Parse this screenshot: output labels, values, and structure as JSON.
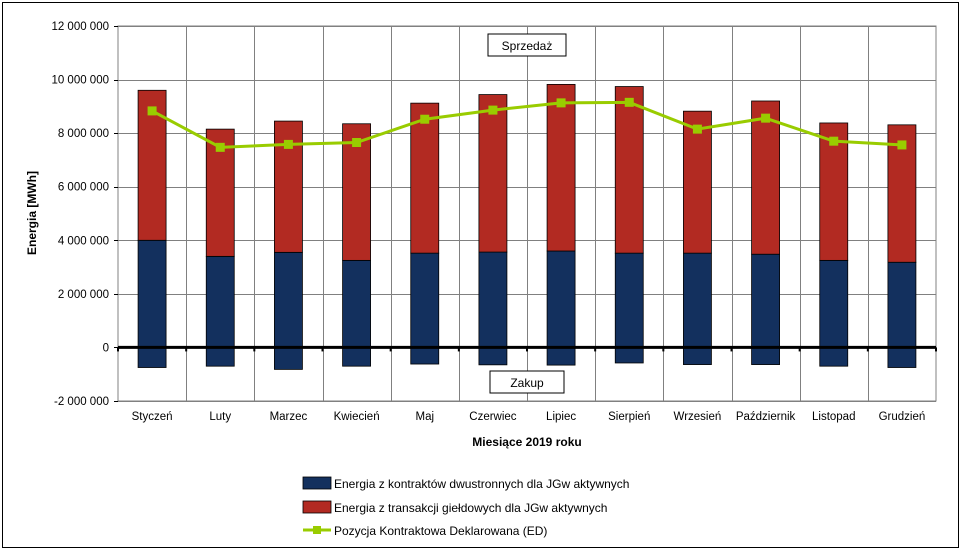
{
  "chart_data": {
    "type": "bar",
    "subtype": "stacked bar with line",
    "categories": [
      "Styczeń",
      "Luty",
      "Marzec",
      "Kwiecień",
      "Maj",
      "Czerwiec",
      "Lipiec",
      "Sierpień",
      "Wrzesień",
      "Październik",
      "Listopad",
      "Grudzień"
    ],
    "series": [
      {
        "name": "Energia z kontraktów dwustronnych dla JGw aktywnych",
        "kind": "bar",
        "color": "#13305e",
        "values": [
          4000000,
          3400000,
          3550000,
          3250000,
          3520000,
          3560000,
          3600000,
          3520000,
          3520000,
          3480000,
          3250000,
          3180000
        ],
        "negative_values": [
          -750000,
          -700000,
          -820000,
          -700000,
          -620000,
          -650000,
          -660000,
          -580000,
          -640000,
          -640000,
          -700000,
          -750000
        ]
      },
      {
        "name": "Energia z transakcji giełdowych dla JGw aktywnych",
        "kind": "bar",
        "color": "#b22a22",
        "values": [
          5600000,
          4750000,
          4900000,
          5100000,
          5600000,
          5880000,
          6220000,
          6220000,
          5300000,
          5720000,
          5130000,
          5130000
        ]
      },
      {
        "name": "Pozycja Kontraktowa Deklarowana (ED)",
        "kind": "line",
        "color": "#99cc00",
        "values": [
          8830000,
          7470000,
          7580000,
          7650000,
          8520000,
          8860000,
          9130000,
          9150000,
          8150000,
          8560000,
          7700000,
          7560000
        ]
      }
    ],
    "ylim": [
      -2000000,
      12000000
    ],
    "yticks": [
      {
        "value": 12000000,
        "label": "12 000 000"
      },
      {
        "value": 10000000,
        "label": "10 000 000"
      },
      {
        "value": 8000000,
        "label": "8 000 000"
      },
      {
        "value": 6000000,
        "label": "6 000 000"
      },
      {
        "value": 4000000,
        "label": "4 000 000"
      },
      {
        "value": 2000000,
        "label": "2 000 000"
      },
      {
        "value": 0,
        "label": "0"
      },
      {
        "value": -2000000,
        "label": "-2 000 000"
      }
    ],
    "xlabel": "Miesiące 2019  roku",
    "ylabel": "Energia  [MWh]",
    "grid": true,
    "legend_position": "bottom",
    "annotations": [
      {
        "text": "Sprzedaż"
      },
      {
        "text": "Zakup"
      }
    ],
    "plot_background": "#ffffff",
    "zero_line_color": "#000000"
  }
}
